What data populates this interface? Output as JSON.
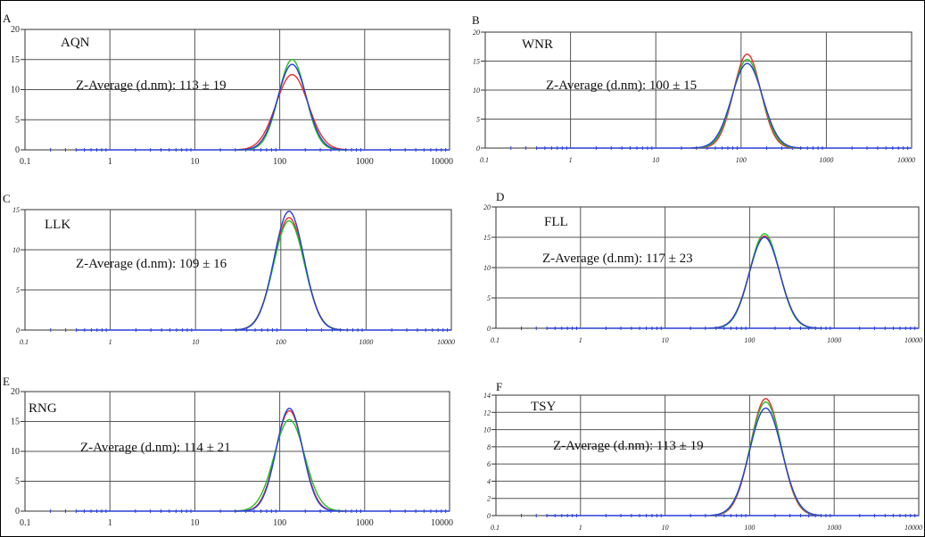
{
  "figure": {
    "x_axis": {
      "scale": "log",
      "ticks": [
        "0.1",
        "1",
        "10",
        "100",
        "1000",
        "10000"
      ]
    },
    "series_colors": {
      "red": "#ee2b2b",
      "green": "#22c222",
      "blue": "#2a3fd6"
    }
  },
  "chart_data": [
    {
      "type": "line",
      "panel_label": "A",
      "sample": "AQN",
      "annotation": "Z-Average (d.nm): 113 ± 19",
      "xlim": [
        0.1,
        10000
      ],
      "ylim": [
        0,
        20
      ],
      "y_ticks": [
        "0",
        "5",
        "10",
        "15",
        "20"
      ],
      "peak_center": 140,
      "series": [
        {
          "color": "red",
          "peak": 12.5,
          "width": 0.19
        },
        {
          "color": "green",
          "peak": 15.0,
          "width": 0.16
        },
        {
          "color": "blue",
          "peak": 14.2,
          "width": 0.17
        }
      ],
      "grid": true
    },
    {
      "type": "line",
      "panel_label": "B",
      "sample": "WNR",
      "annotation": "Z-Average (d.nm): 100 ± 15",
      "xlim": [
        0.1,
        10000
      ],
      "ylim": [
        0,
        20
      ],
      "y_ticks": [
        "0",
        "5",
        "10",
        "15",
        "20"
      ],
      "peak_center": 118,
      "series": [
        {
          "color": "red",
          "peak": 16.2,
          "width": 0.16
        },
        {
          "color": "green",
          "peak": 15.3,
          "width": 0.17
        },
        {
          "color": "blue",
          "peak": 14.6,
          "width": 0.18
        }
      ],
      "grid": true
    },
    {
      "type": "line",
      "panel_label": "C",
      "sample": "LLK",
      "annotation": "Z-Average (d.nm): 109 ± 16",
      "xlim": [
        0.1,
        10000
      ],
      "ylim": [
        0,
        15
      ],
      "y_ticks": [
        "0",
        "5",
        "10",
        "15"
      ],
      "peak_center": 125,
      "series": [
        {
          "color": "red",
          "peak": 14.0,
          "width": 0.18
        },
        {
          "color": "green",
          "peak": 13.6,
          "width": 0.18
        },
        {
          "color": "blue",
          "peak": 14.8,
          "width": 0.175
        }
      ],
      "grid": true
    },
    {
      "type": "line",
      "panel_label": "D",
      "sample": "FLL",
      "annotation": "Z-Average (d.nm): 117 ± 23",
      "xlim": [
        0.1,
        10000
      ],
      "ylim": [
        0,
        20
      ],
      "y_ticks": [
        "0",
        "5",
        "10",
        "15",
        "20"
      ],
      "peak_center": 150,
      "series": [
        {
          "color": "red",
          "peak": 15.2,
          "width": 0.18
        },
        {
          "color": "green",
          "peak": 15.6,
          "width": 0.175
        },
        {
          "color": "blue",
          "peak": 15.0,
          "width": 0.18
        }
      ],
      "grid": true
    },
    {
      "type": "line",
      "panel_label": "E",
      "sample": "RNG",
      "annotation": "Z-Average (d.nm): 114 ± 21",
      "xlim": [
        0.1,
        10000
      ],
      "ylim": [
        0,
        20
      ],
      "y_ticks": [
        "0",
        "5",
        "10",
        "15",
        "20"
      ],
      "peak_center": 130,
      "series": [
        {
          "color": "red",
          "peak": 16.8,
          "width": 0.16
        },
        {
          "color": "green",
          "peak": 15.3,
          "width": 0.18
        },
        {
          "color": "blue",
          "peak": 17.2,
          "width": 0.155
        }
      ],
      "grid": true
    },
    {
      "type": "line",
      "panel_label": "F",
      "sample": "TSY",
      "annotation": "Z-Average (d.nm): 113 ± 19",
      "xlim": [
        0.1,
        10000
      ],
      "ylim": [
        0,
        14
      ],
      "y_ticks": [
        "0",
        "2",
        "4",
        "6",
        "8",
        "10",
        "12",
        "14"
      ],
      "peak_center": 155,
      "series": [
        {
          "color": "red",
          "peak": 13.6,
          "width": 0.18
        },
        {
          "color": "green",
          "peak": 13.2,
          "width": 0.185
        },
        {
          "color": "blue",
          "peak": 12.5,
          "width": 0.19
        }
      ],
      "grid": true
    }
  ]
}
